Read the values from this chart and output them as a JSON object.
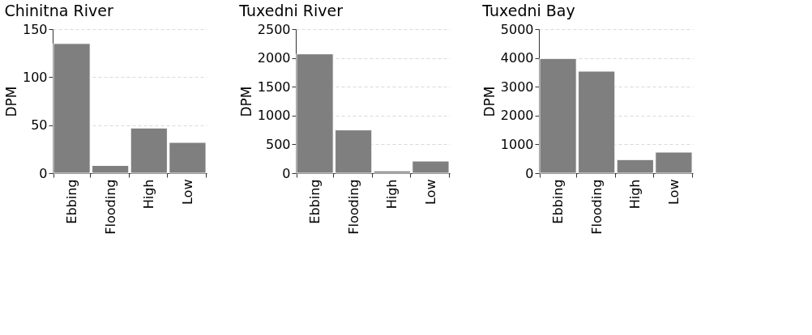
{
  "chart_data": [
    {
      "type": "bar",
      "title": "Chinitna River",
      "ylabel": "DPM",
      "categories": [
        "Ebbing",
        "Flooding",
        "High",
        "Low"
      ],
      "values": [
        135,
        8,
        47,
        32
      ],
      "color": "#7f7f7f",
      "ylim": [
        0,
        150
      ],
      "yticks": [
        0,
        50,
        100,
        150
      ],
      "grid": "y"
    },
    {
      "type": "bar",
      "title": "Tuxedni River",
      "ylabel": "DPM",
      "categories": [
        "Ebbing",
        "Flooding",
        "High",
        "Low"
      ],
      "values": [
        2070,
        750,
        40,
        210
      ],
      "color": "#7f7f7f",
      "ylim": [
        0,
        2500
      ],
      "yticks": [
        0,
        500,
        1000,
        1500,
        2000,
        2500
      ],
      "grid": "y"
    },
    {
      "type": "bar",
      "title": "Tuxedni Bay",
      "ylabel": "DPM",
      "categories": [
        "Ebbing",
        "Flooding",
        "High",
        "Low"
      ],
      "values": [
        3980,
        3540,
        470,
        730
      ],
      "color": "#7f7f7f",
      "ylim": [
        0,
        5000
      ],
      "yticks": [
        0,
        1000,
        2000,
        3000,
        4000,
        5000
      ],
      "grid": "y"
    }
  ]
}
